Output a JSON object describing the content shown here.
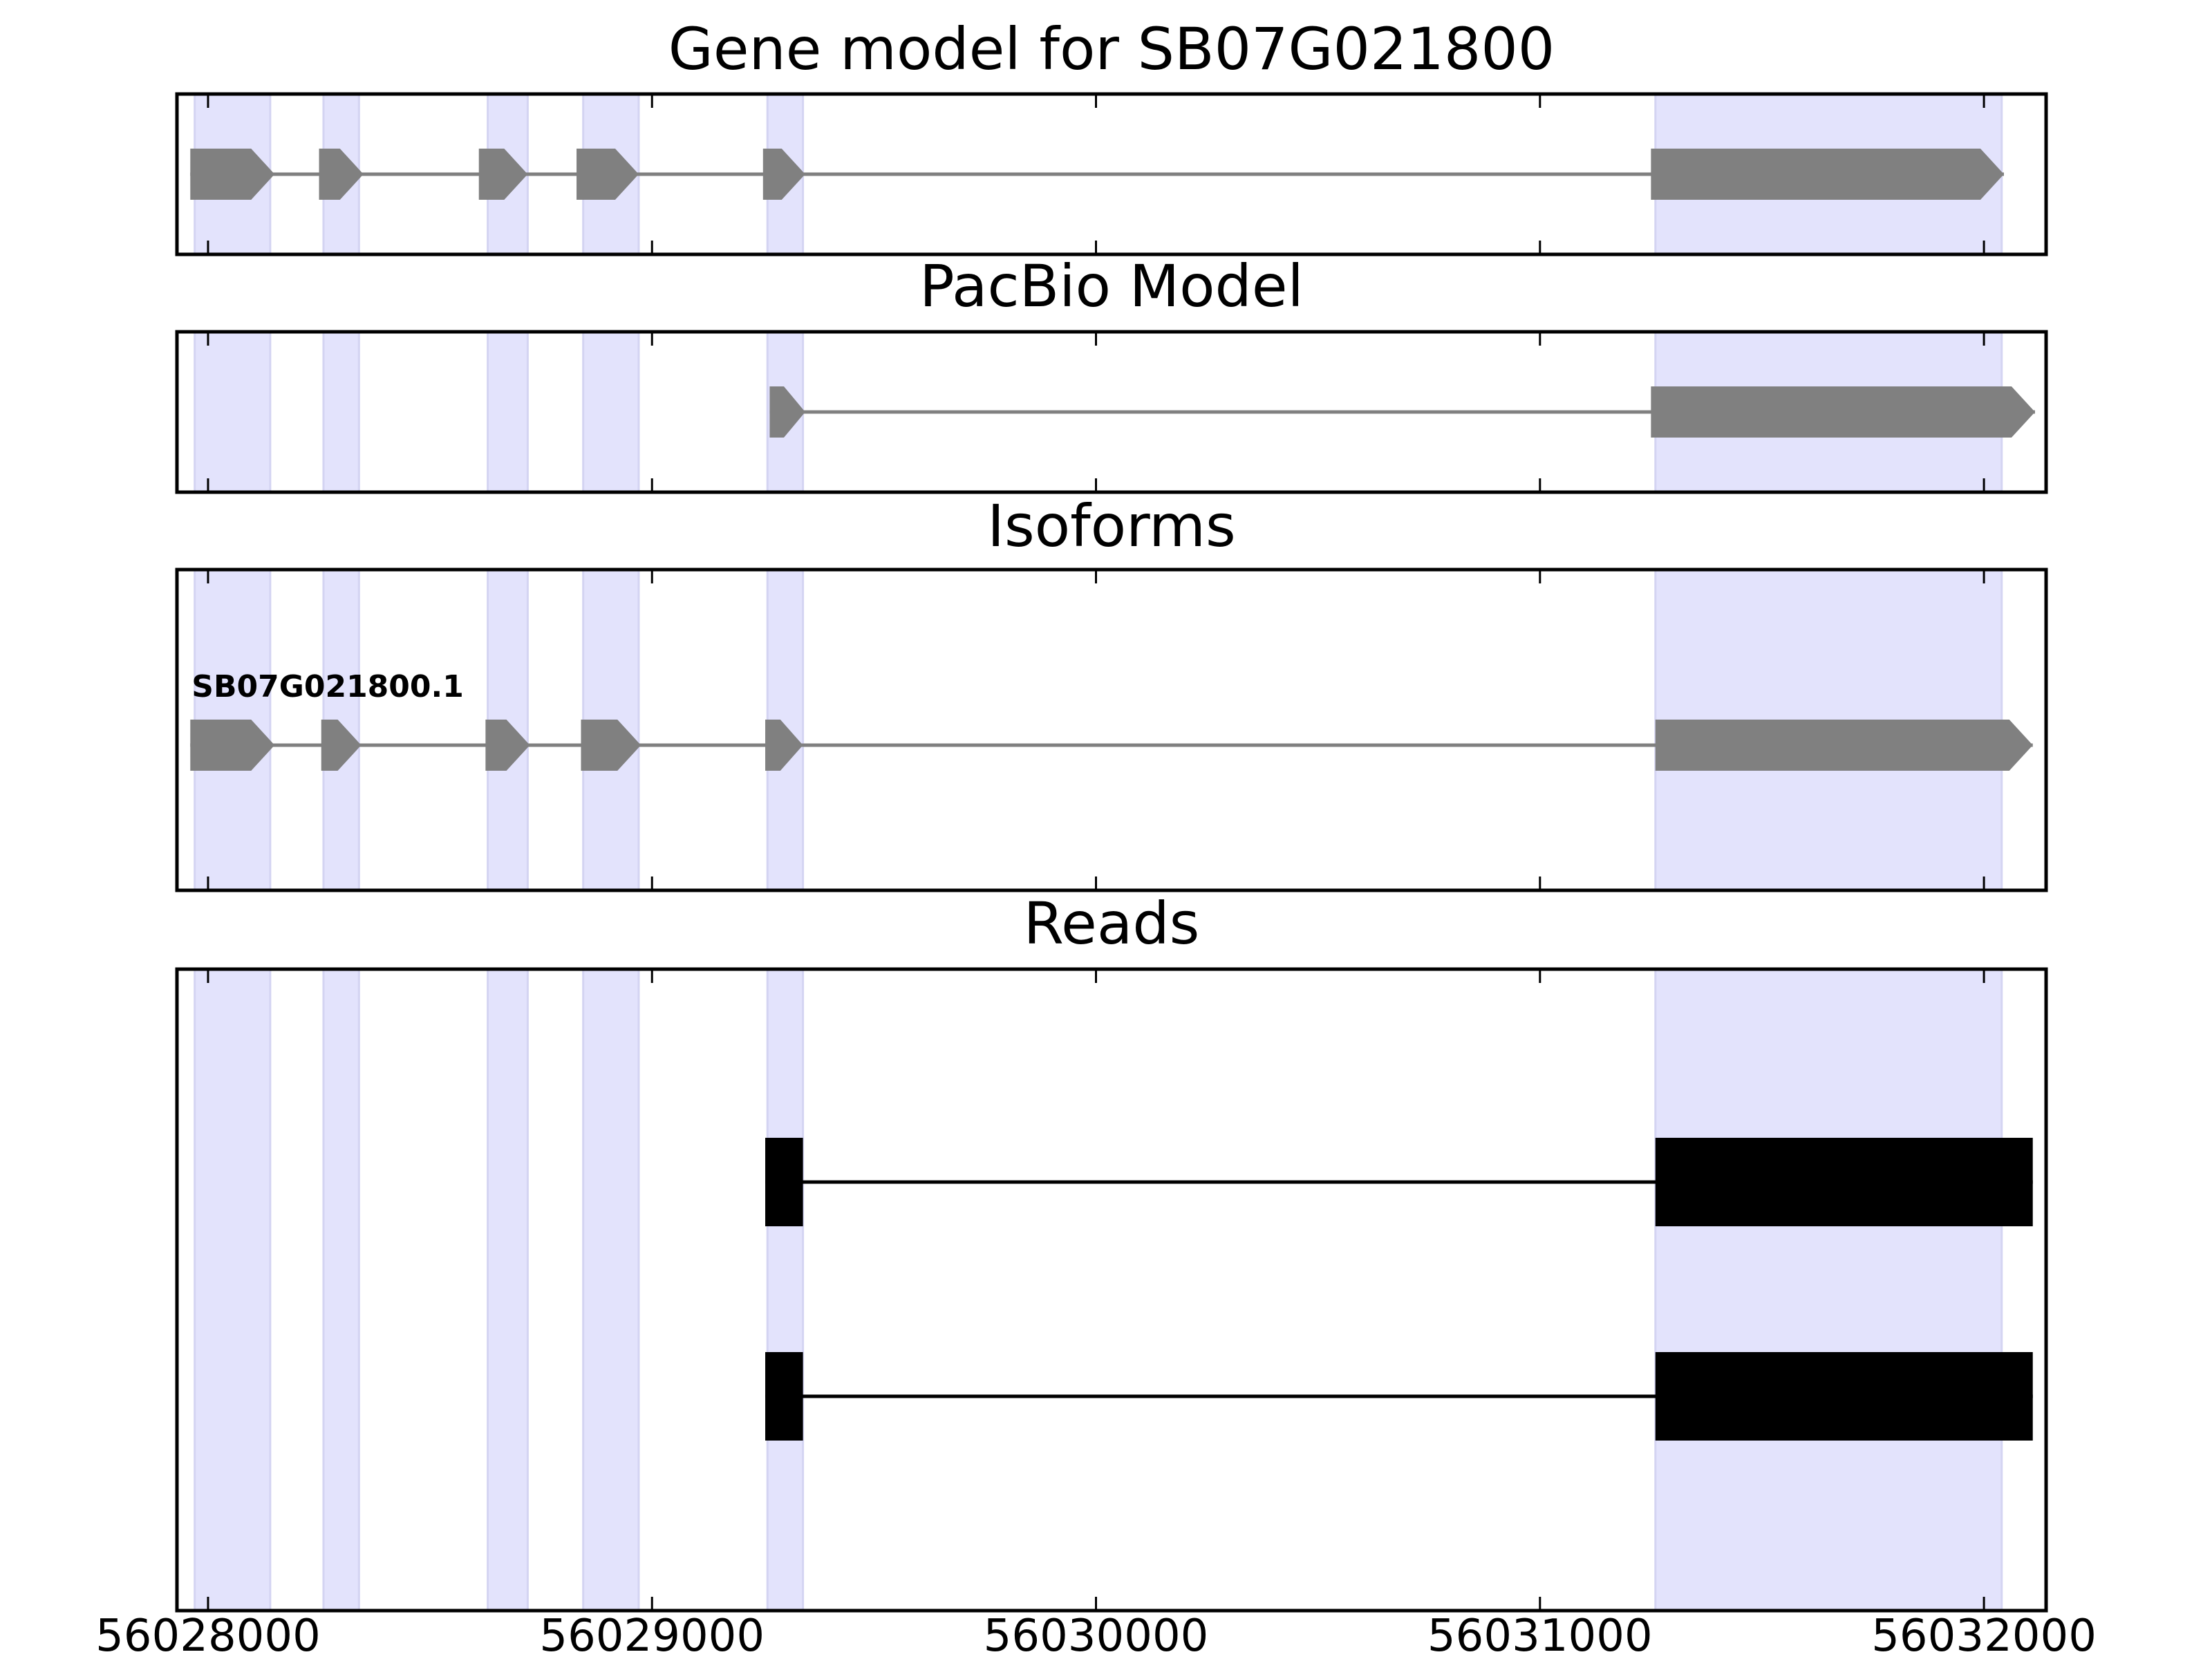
{
  "chart_data": {
    "type": "gene-track",
    "x_ticks": [
      56028000,
      56029000,
      56030000,
      56031000,
      56032000
    ],
    "x_tick_labels": [
      "56028000",
      "56029000",
      "56030000",
      "56031000",
      "56032000"
    ],
    "xlim": [
      56027930,
      56032140
    ],
    "highlight_color": "#e3e3fc",
    "exon_regions": [
      [
        56027970,
        56028140
      ],
      [
        56028260,
        56028340
      ],
      [
        56028630,
        56028720
      ],
      [
        56028845,
        56028970
      ],
      [
        56029260,
        56029340
      ],
      [
        56031260,
        56032040
      ]
    ],
    "panels": [
      {
        "title": "Gene model for SB07G021800",
        "kind": "arrow-exons",
        "color": "#808080",
        "features": [
          {
            "exons": [
              [
                56027960,
                56028150
              ],
              [
                56028250,
                56028350
              ],
              [
                56028610,
                56028720
              ],
              [
                56028830,
                56028970
              ],
              [
                56029250,
                56029345
              ],
              [
                56031250,
                56032045
              ]
            ]
          }
        ]
      },
      {
        "title": "PacBio Model",
        "kind": "arrow-exons",
        "color": "#808080",
        "features": [
          {
            "exons": [
              [
                56029265,
                56029345
              ],
              [
                56031250,
                56032115
              ]
            ]
          }
        ]
      },
      {
        "title": "Isoforms",
        "kind": "arrow-exons",
        "color": "#808080",
        "features": [
          {
            "label": "SB07G021800.1",
            "exons": [
              [
                56027960,
                56028150
              ],
              [
                56028255,
                56028345
              ],
              [
                56028625,
                56028725
              ],
              [
                56028840,
                56028975
              ],
              [
                56029255,
                56029340
              ],
              [
                56031260,
                56032110
              ]
            ]
          }
        ]
      },
      {
        "title": "Reads",
        "kind": "block-exons",
        "color": "#000000",
        "features": [
          {
            "exons": [
              [
                56029255,
                56029340
              ],
              [
                56031260,
                56032110
              ]
            ]
          },
          {
            "exons": [
              [
                56029255,
                56029340
              ],
              [
                56031260,
                56032110
              ]
            ]
          }
        ]
      }
    ]
  }
}
